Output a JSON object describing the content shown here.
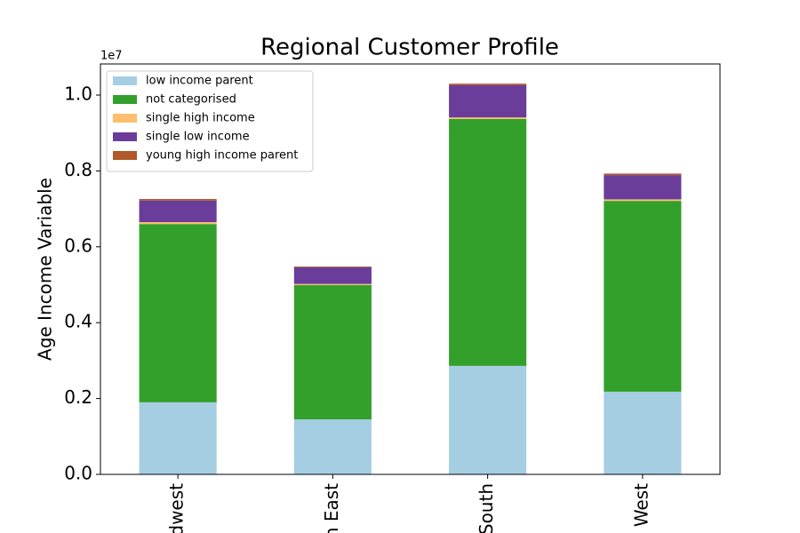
{
  "chart_data": {
    "type": "stacked_bar",
    "title": "Regional Customer Profile",
    "y_label": "Age Income Variable",
    "y_offset_label": "1e7",
    "categories": [
      "dwest",
      "n East",
      "South",
      "West"
    ],
    "series": [
      {
        "name": "low income parent",
        "color": "#a6cee3",
        "values": [
          0.19,
          0.145,
          0.286,
          0.218
        ]
      },
      {
        "name": "not categorised",
        "color": "#33a02c",
        "values": [
          0.47,
          0.354,
          0.651,
          0.503
        ]
      },
      {
        "name": "single high income",
        "color": "#fdbf6f",
        "values": [
          0.005,
          0.003,
          0.004,
          0.004
        ]
      },
      {
        "name": "single low income",
        "color": "#6a3d9a",
        "values": [
          0.057,
          0.044,
          0.085,
          0.064
        ]
      },
      {
        "name": "young high income parent",
        "color": "#b15928",
        "values": [
          0.004,
          0.002,
          0.004,
          0.004
        ]
      }
    ],
    "ylim": [
      0,
      1.082
    ],
    "yticks": [
      {
        "value": 0,
        "label": "0.0"
      },
      0.2,
      0.4,
      0.6,
      0.8,
      {
        "value": 1,
        "label": "1.0"
      }
    ],
    "legend": "upper left"
  }
}
